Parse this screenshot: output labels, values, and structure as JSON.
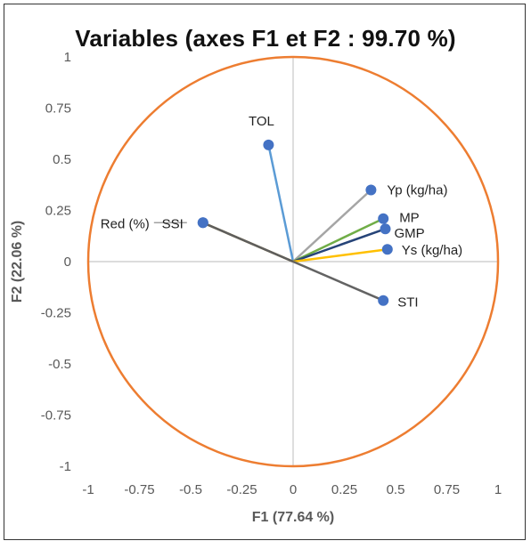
{
  "chart_data": {
    "type": "scatter",
    "title": "Variables (axes F1 et F2 : 99.70 %)",
    "xlabel": "F1 (77.64 %)",
    "ylabel": "F2 (22.06 %)",
    "xlim": [
      -1,
      1
    ],
    "ylim": [
      -1,
      1
    ],
    "xticks": [
      "-1",
      "-0.75",
      "-0.5",
      "-0.25",
      "0",
      "0.25",
      "0.5",
      "0.75",
      "1"
    ],
    "yticks": [
      "1",
      "0.75",
      "0.5",
      "0.25",
      "0",
      "-0.25",
      "-0.5",
      "-0.75",
      "-1"
    ],
    "grid": false,
    "circle": {
      "radius": 1,
      "color": "#ED7D31"
    },
    "point_color": "#4472C4",
    "variables": [
      {
        "label": "TOL",
        "x": -0.12,
        "y": 0.57,
        "color": "#5B9BD5"
      },
      {
        "label": "Yp (kg/ha)",
        "x": 0.38,
        "y": 0.35,
        "color": "#A5A5A5"
      },
      {
        "label": "MP",
        "x": 0.44,
        "y": 0.21,
        "color": "#70AD47"
      },
      {
        "label": "GMP",
        "x": 0.45,
        "y": 0.16,
        "color": "#264478"
      },
      {
        "label": "Ys (kg/ha)",
        "x": 0.46,
        "y": 0.06,
        "color": "#FFC000"
      },
      {
        "label": "STI",
        "x": 0.44,
        "y": -0.19,
        "color": "#636363"
      },
      {
        "label": "SSI",
        "x": -0.44,
        "y": 0.19,
        "color": "#997300"
      },
      {
        "label": "Red (%)",
        "x": -0.44,
        "y": 0.19,
        "color": "#5E5E5E"
      }
    ]
  }
}
